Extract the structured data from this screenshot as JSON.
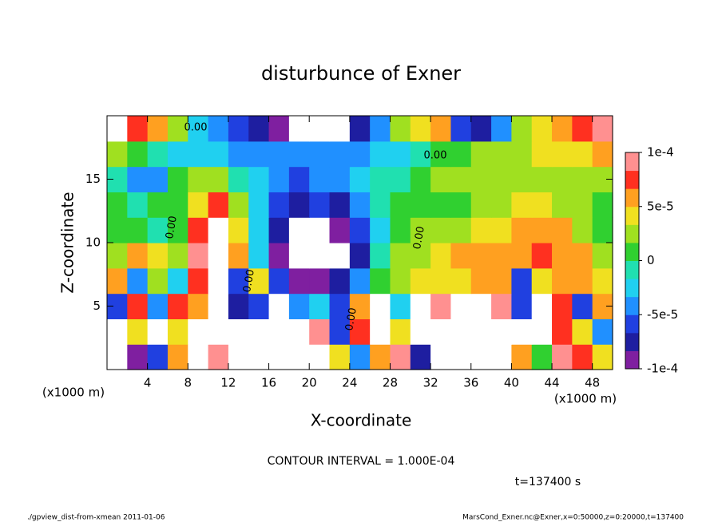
{
  "chart_data": {
    "type": "heatmap",
    "title": "disturbunce of Exner",
    "xlabel": "X-coordinate",
    "ylabel": "Z-coordinate",
    "x_unit": "(x1000 m)",
    "z_unit": "(x1000 m)",
    "contour_label": "0.00",
    "contour_interval": "CONTOUR INTERVAL = 1.000E-04",
    "time_label": "t=137400 s",
    "footer_left": "./gpview_dist-from-xmean  2011-01-06",
    "footer_right": "MarsCond_Exner.nc@Exner,x=0:50000,z=0:20000,t=137400",
    "xlim": [
      0,
      50
    ],
    "ylim": [
      0,
      20
    ],
    "xticks": [
      4,
      8,
      12,
      16,
      20,
      24,
      28,
      32,
      36,
      40,
      44,
      48
    ],
    "yticks": [
      5,
      10,
      15
    ],
    "x": [
      1,
      3,
      5,
      7,
      9,
      11,
      13,
      15,
      17,
      19,
      21,
      23,
      25,
      27,
      29,
      31,
      33,
      35,
      37,
      39,
      41,
      43,
      45,
      47,
      49
    ],
    "z": [
      1,
      3,
      5,
      7,
      9,
      11,
      13,
      15,
      17,
      19
    ],
    "values": [
      [
        0.00012,
        -0.0001,
        -6e-05,
        6e-05,
        0.00014,
        0.0001,
        -0.00014,
        -0.00014,
        -0.00012,
        0.00012,
        0.00012,
        4e-05,
        -5e-05,
        6e-05,
        0.0001,
        -8e-05,
        0.00012,
        0.00012,
        0.00012,
        0.00012,
        6e-05,
        0,
        0.0001,
        8e-05,
        4e-05
      ],
      [
        0.00012,
        4e-05,
        -0.00012,
        4e-05,
        0.00014,
        0.00012,
        -0.00014,
        -0.00016,
        -0.00014,
        0.00012,
        0.0001,
        -6e-05,
        8e-05,
        -0.00015,
        4e-05,
        -0.00015,
        0.00012,
        0.00014,
        0.00014,
        0.00012,
        0.00012,
        0.00014,
        8e-05,
        4e-05,
        -4e-05
      ],
      [
        -6e-05,
        8e-05,
        -4e-05,
        8e-05,
        6e-05,
        0.00014,
        -8e-05,
        -6e-05,
        -0.00012,
        -4e-05,
        -2e-05,
        -6e-05,
        6e-05,
        -0.00012,
        -3e-05,
        -0.00015,
        0.0001,
        0.00014,
        0.00014,
        0.0001,
        -6e-05,
        0.00012,
        8e-05,
        -6e-05,
        6e-05
      ],
      [
        6e-05,
        -4e-05,
        3e-05,
        -2e-05,
        8e-05,
        0.00014,
        -6e-05,
        4e-05,
        -6e-05,
        -9e-05,
        -9e-05,
        -8e-05,
        -4e-05,
        1e-05,
        3e-05,
        4e-05,
        4e-05,
        4e-05,
        5e-05,
        5e-05,
        -6e-05,
        4e-05,
        6e-05,
        5e-05,
        4e-05
      ],
      [
        3e-05,
        5e-05,
        4e-05,
        2e-05,
        9e-05,
        0.00012,
        5e-05,
        -3e-05,
        -0.0001,
        -0.00015,
        -0.00015,
        -0.00014,
        -7e-05,
        -1e-05,
        2e-05,
        3e-05,
        4e-05,
        5e-05,
        5e-05,
        6e-05,
        6e-05,
        7e-05,
        6e-05,
        5e-05,
        3e-05
      ],
      [
        1e-05,
        0,
        -1e-05,
        1e-05,
        8e-05,
        0.00012,
        4e-05,
        -2e-05,
        -8e-05,
        -0.00012,
        -0.00011,
        -0.0001,
        -6e-05,
        -2e-05,
        1e-05,
        2e-05,
        2e-05,
        3e-05,
        4e-05,
        4e-05,
        5e-05,
        6e-05,
        5e-05,
        3e-05,
        1e-05
      ],
      [
        0,
        -1e-05,
        0,
        1e-05,
        4e-05,
        7e-05,
        2e-05,
        -2e-05,
        -6e-05,
        -8e-05,
        -6e-05,
        -7e-05,
        -4e-05,
        -1e-05,
        0,
        1e-05,
        1e-05,
        1e-05,
        3e-05,
        3e-05,
        4e-05,
        4e-05,
        3e-05,
        2e-05,
        1e-05
      ],
      [
        -1e-05,
        -5e-05,
        -5e-05,
        0,
        2e-05,
        3e-05,
        -1e-05,
        -3e-05,
        -5e-05,
        -6e-05,
        -5e-05,
        -5e-05,
        -3e-05,
        -1e-05,
        -1e-05,
        1e-05,
        2e-05,
        2e-05,
        2e-05,
        2e-05,
        3e-05,
        3e-05,
        3e-05,
        3e-05,
        2e-05
      ],
      [
        2e-05,
        0,
        -1e-05,
        -2e-05,
        -3e-05,
        -3e-05,
        -4e-05,
        -5e-05,
        -5e-05,
        -5e-05,
        -5e-05,
        -5e-05,
        -4e-05,
        -3e-05,
        -2e-05,
        -1e-05,
        0,
        1e-05,
        2e-05,
        3e-05,
        3e-05,
        4e-05,
        4e-05,
        4e-05,
        5e-05
      ],
      [
        0.00012,
        8e-05,
        6e-05,
        2e-05,
        -2e-05,
        -4e-05,
        -6e-05,
        -8e-05,
        -9e-05,
        -0.00012,
        -0.00012,
        -0.00011,
        -8e-05,
        -4e-05,
        2e-05,
        4e-05,
        6e-05,
        -6e-05,
        -8e-05,
        -4e-05,
        2e-05,
        4e-05,
        6e-05,
        8e-05,
        0.0001
      ]
    ],
    "clim": [
      -0.0001,
      0.0001
    ],
    "colors": [
      "#7f1fa0",
      "#1e1ea0",
      "#2040e0",
      "#2090ff",
      "#20d0f0",
      "#20e0b0",
      "#30d030",
      "#a0e020",
      "#f0e020",
      "#ffa020",
      "#ff3020",
      "#ff9090"
    ],
    "cticks": [
      {
        "value": 0.0001,
        "label": "1e-4"
      },
      {
        "value": 5e-05,
        "label": "5e-5"
      },
      0,
      {
        "value": -5e-05,
        "label": "-5e-5"
      },
      {
        "value": -0.0001,
        "label": "-1e-4"
      }
    ]
  }
}
